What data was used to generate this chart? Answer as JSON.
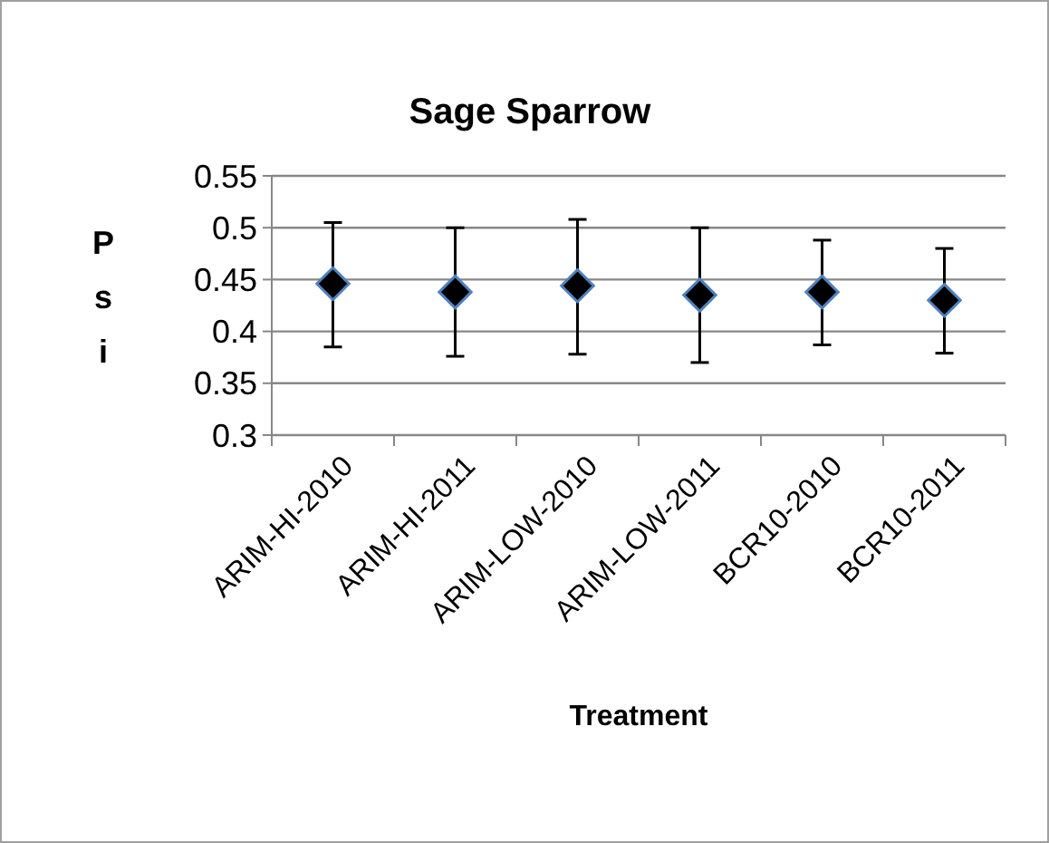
{
  "chart_data": {
    "type": "scatter",
    "title": "Sage Sparrow",
    "xlabel": "Treatment",
    "ylabel": "Psi",
    "categories": [
      "ARIM-HI-2010",
      "ARIM-HI-2011",
      "ARIM-LOW-2010",
      "ARIM-LOW-2011",
      "BCR10-2010",
      "BCR10-2011"
    ],
    "series": [
      {
        "color": "#000000",
        "values": [
          0.446,
          0.438,
          0.444,
          0.435,
          0.438,
          0.43
        ],
        "errors": [
          [
            0.385,
            0.505
          ],
          [
            0.376,
            0.5
          ],
          [
            0.378,
            0.508
          ],
          [
            0.37,
            0.5
          ],
          [
            0.387,
            0.488
          ],
          [
            0.379,
            0.48
          ]
        ]
      }
    ],
    "ylim": [
      0.3,
      0.55
    ],
    "yticks": [
      0.3,
      0.35,
      0.4,
      0.45,
      0.5,
      0.55
    ],
    "grid": "y",
    "marker": "diamond"
  }
}
